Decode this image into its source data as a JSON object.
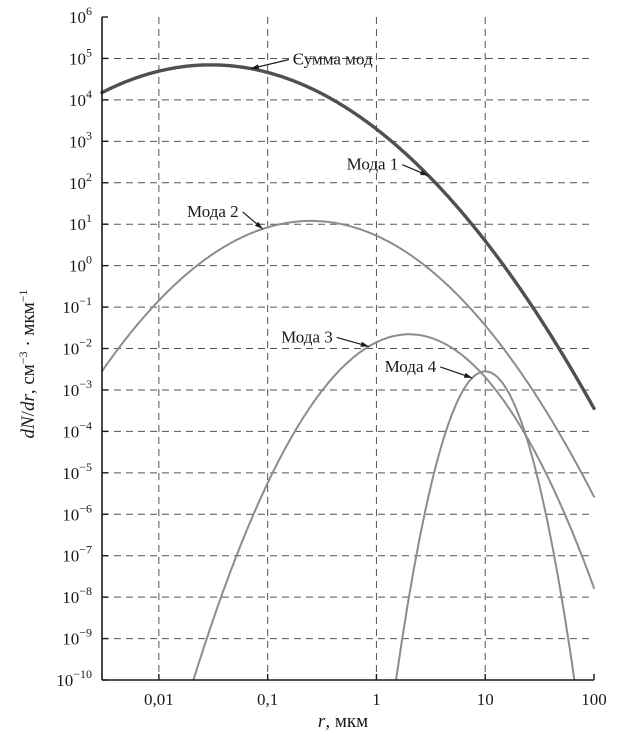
{
  "chart_data": {
    "type": "line",
    "x_scale": "log",
    "y_scale": "log",
    "xlim": [
      0.003,
      100
    ],
    "ylim": [
      1e-10,
      1000000.0
    ],
    "grid": true,
    "xlabel": {
      "var": "r",
      "unit": ", мкм"
    },
    "ylabel": {
      "part1": "dN",
      "part2": "/",
      "part3": "dr",
      "part4": ", см",
      "exp1": "−3",
      "part5": " · мкм",
      "exp2": "−1"
    },
    "x_ticks": [
      {
        "value": 0.01,
        "label": "0,01"
      },
      {
        "value": 0.1,
        "label": "0,1"
      },
      {
        "value": 1,
        "label": "1"
      },
      {
        "value": 10,
        "label": "10"
      },
      {
        "value": 100,
        "label": "100"
      }
    ],
    "y_ticks": [
      {
        "value": 1000000.0,
        "base": "10",
        "exp": "6"
      },
      {
        "value": 100000.0,
        "base": "10",
        "exp": "5"
      },
      {
        "value": 10000.0,
        "base": "10",
        "exp": "4"
      },
      {
        "value": 1000.0,
        "base": "10",
        "exp": "3"
      },
      {
        "value": 100.0,
        "base": "10",
        "exp": "2"
      },
      {
        "value": 10.0,
        "base": "10",
        "exp": "1"
      },
      {
        "value": 1.0,
        "base": "10",
        "exp": "0"
      },
      {
        "value": 0.1,
        "base": "10",
        "exp": "−1"
      },
      {
        "value": 0.01,
        "base": "10",
        "exp": "−2"
      },
      {
        "value": 0.001,
        "base": "10",
        "exp": "−3"
      },
      {
        "value": 0.0001,
        "base": "10",
        "exp": "−4"
      },
      {
        "value": 1e-05,
        "base": "10",
        "exp": "−5"
      },
      {
        "value": 1e-06,
        "base": "10",
        "exp": "−6"
      },
      {
        "value": 1e-07,
        "base": "10",
        "exp": "−7"
      },
      {
        "value": 1e-08,
        "base": "10",
        "exp": "−8"
      },
      {
        "value": 1e-09,
        "base": "10",
        "exp": "−9"
      },
      {
        "value": 1e-10,
        "base": "10",
        "exp": "−10"
      }
    ],
    "series": [
      {
        "name": "Мода 1",
        "role": "mode",
        "peak_r": 0.03,
        "peak_value": 70000.0,
        "log10_width": 0.57
      },
      {
        "name": "Мода 2",
        "role": "mode",
        "peak_r": 0.25,
        "peak_value": 12,
        "log10_width": 0.47
      },
      {
        "name": "Мода 3",
        "role": "mode",
        "peak_r": 2.0,
        "peak_value": 0.022,
        "log10_width": 0.32
      },
      {
        "name": "Мода 4",
        "role": "mode",
        "peak_r": 10,
        "peak_value": 0.0028,
        "log10_width": 0.14
      },
      {
        "name": "Сумма мод",
        "role": "sum"
      }
    ]
  },
  "annotations": [
    {
      "series": "Сумма мод",
      "text": "Сумма мод",
      "at_r": 0.07
    },
    {
      "series": "Мода 2",
      "text": "Мода 2",
      "at_r": 0.09
    },
    {
      "series": "Мода 3",
      "text": "Мода 3",
      "at_r": 0.85
    },
    {
      "series": "Мода 1",
      "text": "Мода 1",
      "at_r": 3.0
    },
    {
      "series": "Мода 4",
      "text": "Мода 4",
      "at_r": 7.6
    }
  ],
  "colors": {
    "mode": "#8c8c8c",
    "sum": "#505050",
    "grid": "#555555",
    "axis": "#1a1a1a"
  }
}
